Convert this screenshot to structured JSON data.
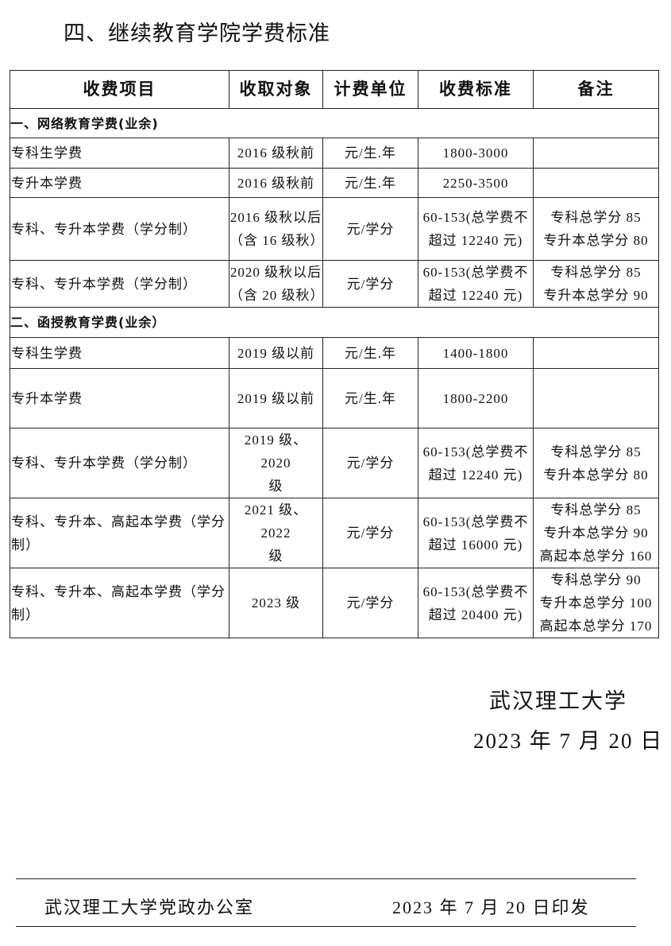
{
  "title": "四、继续教育学院学费标准",
  "table": {
    "headers": [
      "收费项目",
      "收取对象",
      "计费单位",
      "收费标准",
      "备注"
    ],
    "sections": [
      {
        "label": "一、网络教育学费(业余)",
        "rows": [
          [
            "专科生学费",
            "2016 级秋前",
            "元/生.年",
            "1800-3000",
            ""
          ],
          [
            "专升本学费",
            "2016 级秋前",
            "元/生.年",
            "2250-3500",
            ""
          ],
          [
            "专科、专升本学费（学分制）",
            "2016 级秋以后\n（含 16 级秋）",
            "元/学分",
            "60-153(总学费不\n超过 12240 元)",
            "专科总学分 85\n专升本总学分 80"
          ],
          [
            "专科、专升本学费（学分制）",
            "2020 级秋以后\n（含 20 级秋）",
            "元/学分",
            "60-153(总学费不\n超过 12240 元)",
            "专科总学分 85\n专升本总学分 90"
          ]
        ]
      },
      {
        "label": "二、函授教育学费(业余）",
        "rows": [
          [
            "专科生学费",
            "2019 级以前",
            "元/生.年",
            "1400-1800",
            ""
          ],
          [
            "专升本学费",
            "2019 级以前",
            "元/生.年",
            "1800-2200",
            ""
          ],
          [
            "专科、专升本学费（学分制）",
            "2019 级、2020\n级",
            "元/学分",
            "60-153(总学费不\n超过 12240 元)",
            "专科总学分 85\n专升本总学分 80"
          ],
          [
            "专科、专升本、高起本学费（学分制）",
            "2021 级、2022\n级",
            "元/学分",
            "60-153(总学费不\n超过 16000 元)",
            "专科总学分 85\n专升本总学分 90\n高起本总学分 160"
          ],
          [
            "专科、专升本、高起本学费（学分制）",
            "2023 级",
            "元/学分",
            "60-153(总学费不\n超过 20400 元)",
            "专科总学分 90\n专升本总学分 100\n高起本总学分 170"
          ]
        ]
      }
    ]
  },
  "signature": {
    "org": "武汉理工大学",
    "date": "2023 年 7 月 20 日"
  },
  "footer": {
    "office": "武汉理工大学党政办公室",
    "issued": "2023 年 7 月 20 日印发"
  }
}
